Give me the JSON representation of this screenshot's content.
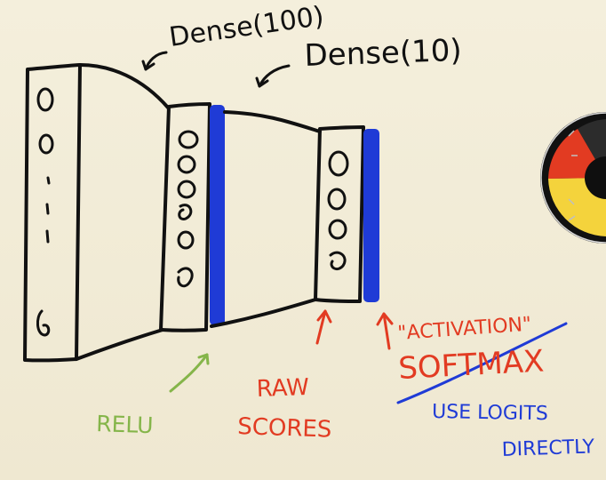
{
  "diagram": {
    "labels": {
      "dense_100": "Dense(100)",
      "dense_10": "Dense(10)",
      "relu": "RELU",
      "raw_scores_line1": "RAW",
      "raw_scores_line2": "SCORES",
      "activation": "\"ACTIVATION\"",
      "softmax": "SOFTMAX",
      "use_logits_line1": "USE LOGITS",
      "use_logits_line2": "DIRECTLY"
    },
    "input_layer_glyphs": [
      "O",
      "O",
      ".",
      ":",
      "i",
      "∂"
    ],
    "hidden_layer_glyphs": [
      "O",
      "O",
      "O",
      "O",
      "O",
      "O"
    ],
    "output_layer_glyphs": [
      "O",
      "O",
      "O",
      "O"
    ],
    "colors": {
      "ink": "#111111",
      "blue": "#1f3bd6",
      "green": "#85b54a",
      "red": "#e23b22",
      "paper": "#f1ecd7"
    }
  }
}
